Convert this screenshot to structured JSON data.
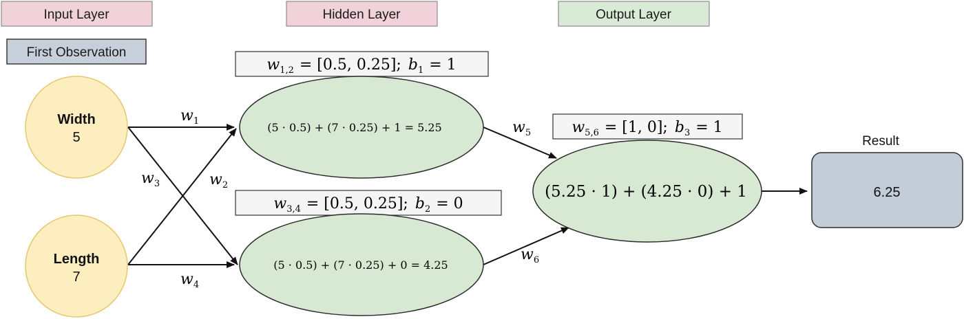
{
  "layer_labels": {
    "input": "Input Layer",
    "hidden": "Hidden Layer",
    "output": "Output Layer"
  },
  "observation_label": "First Observation",
  "inputs": [
    {
      "name": "Width",
      "value": "5"
    },
    {
      "name": "Length",
      "value": "7"
    }
  ],
  "weights": {
    "w1": {
      "base": "w",
      "sub": "1"
    },
    "w2": {
      "base": "w",
      "sub": "2"
    },
    "w3": {
      "base": "w",
      "sub": "3"
    },
    "w4": {
      "base": "w",
      "sub": "4"
    },
    "w5": {
      "base": "w",
      "sub": "5"
    },
    "w6": {
      "base": "w",
      "sub": "6"
    }
  },
  "param_boxes": [
    {
      "w_sub": "1,2",
      "w_value": "= [0.5, 0.25];",
      "b_sub": "1",
      "b_value": "= 1"
    },
    {
      "w_sub": "3,4",
      "w_value": "= [0.5, 0.25];",
      "b_sub": "2",
      "b_value": "= 0"
    },
    {
      "w_sub": "5,6",
      "w_value": "= [1, 0];",
      "b_sub": "3",
      "b_value": "= 1"
    }
  ],
  "hidden_nodes": [
    {
      "expression": "(5 · 0.5) + (7 · 0.25) + 1  = 5.25"
    },
    {
      "expression": "(5 · 0.5) + (7 · 0.25) + 0  = 4.25"
    }
  ],
  "output_node": {
    "expression": "(5.25 · 1) + (4.25 · 0) + 1"
  },
  "result": {
    "title": "Result",
    "value": "6.25"
  },
  "colors": {
    "layer_label_pink": "#f1d1da",
    "layer_label_green": "#d9ead7",
    "observation_blue": "#c7d0da",
    "input_node_fill": "#fdeebf",
    "input_node_stroke": "#e5c76d",
    "neuron_fill": "#d7e8d3",
    "neuron_stroke": "#2b2b2b",
    "result_fill": "#c2cdd7",
    "param_box_fill": "#f5f5f5"
  },
  "icons": {
    "connection": "arrow-right-icon"
  }
}
